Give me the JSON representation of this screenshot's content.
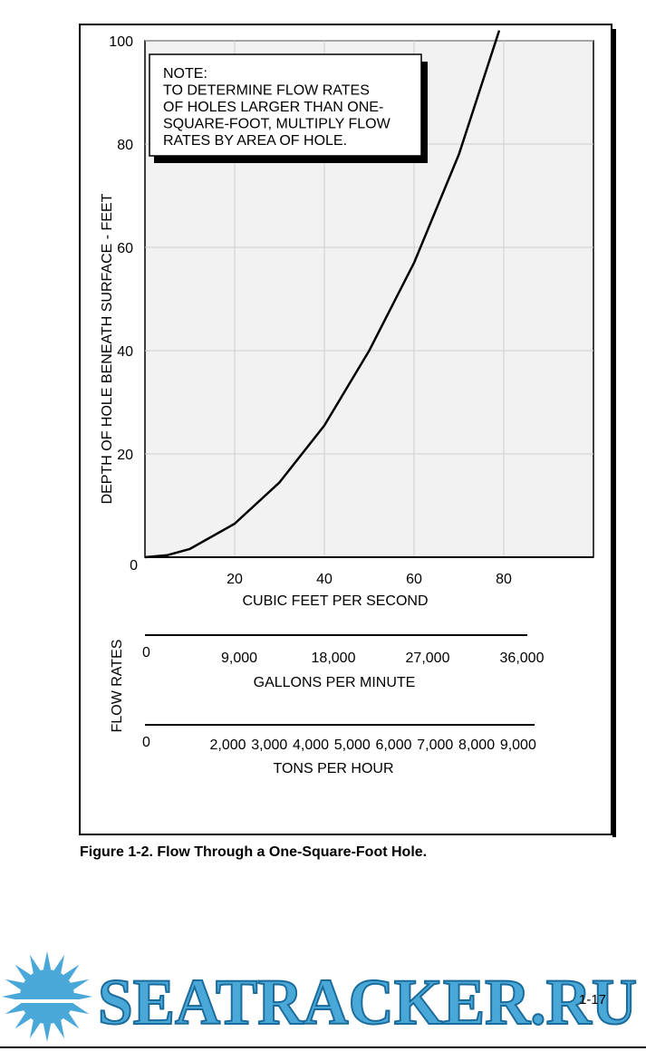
{
  "chart_data": {
    "type": "line",
    "x": [
      0,
      5,
      10,
      20,
      30,
      40,
      50,
      60,
      70,
      79
    ],
    "y": [
      0,
      0.4,
      1.6,
      6.5,
      14.5,
      25.5,
      40,
      57,
      78,
      102
    ],
    "xlim": [
      0,
      100
    ],
    "ylim": [
      0,
      100
    ],
    "x_ticks": [
      20,
      40,
      60,
      80
    ],
    "y_ticks": [
      20,
      40,
      60,
      80,
      100
    ],
    "origin_label": "0",
    "xlabel": "CUBIC FEET PER SECOND",
    "ylabel": "DEPTH OF HOLE BENEATH SURFACE - FEET",
    "grid": true,
    "note": {
      "lines": [
        "NOTE:",
        "TO DETERMINE FLOW RATES",
        "OF HOLES LARGER THAN ONE-",
        "SQUARE-FOOT, MULTIPLY FLOW",
        "RATES BY AREA OF HOLE."
      ]
    },
    "flow_rates_label": "FLOW RATES",
    "gpm_scale": {
      "label": "GALLONS PER MINUTE",
      "ticks": [
        {
          "text": "0",
          "cfs": 0
        },
        {
          "text": "9,000",
          "cfs": 20
        },
        {
          "text": "18,000",
          "cfs": 40
        },
        {
          "text": "27,000",
          "cfs": 60
        },
        {
          "text": "36,000",
          "cfs": 80
        }
      ]
    },
    "tph_scale": {
      "label": "TONS PER HOUR",
      "ticks": [
        {
          "text": "0",
          "cfs": 0
        },
        {
          "text": "2,000",
          "cfs": 17.6
        },
        {
          "text": "3,000",
          "cfs": 26.4
        },
        {
          "text": "4,000",
          "cfs": 35.2
        },
        {
          "text": "5,000",
          "cfs": 44
        },
        {
          "text": "6,000",
          "cfs": 52.8
        },
        {
          "text": "7,000",
          "cfs": 61.6
        },
        {
          "text": "8,000",
          "cfs": 70.4
        },
        {
          "text": "9,000",
          "cfs": 79.2
        }
      ]
    }
  },
  "caption": "Figure 1-2. Flow Through a One-Square-Foot Hole.",
  "page_number": "1-17",
  "watermark": {
    "text": "SEATRACKER.RU",
    "color": "#4aa8d8",
    "icon": "sun-icon"
  }
}
